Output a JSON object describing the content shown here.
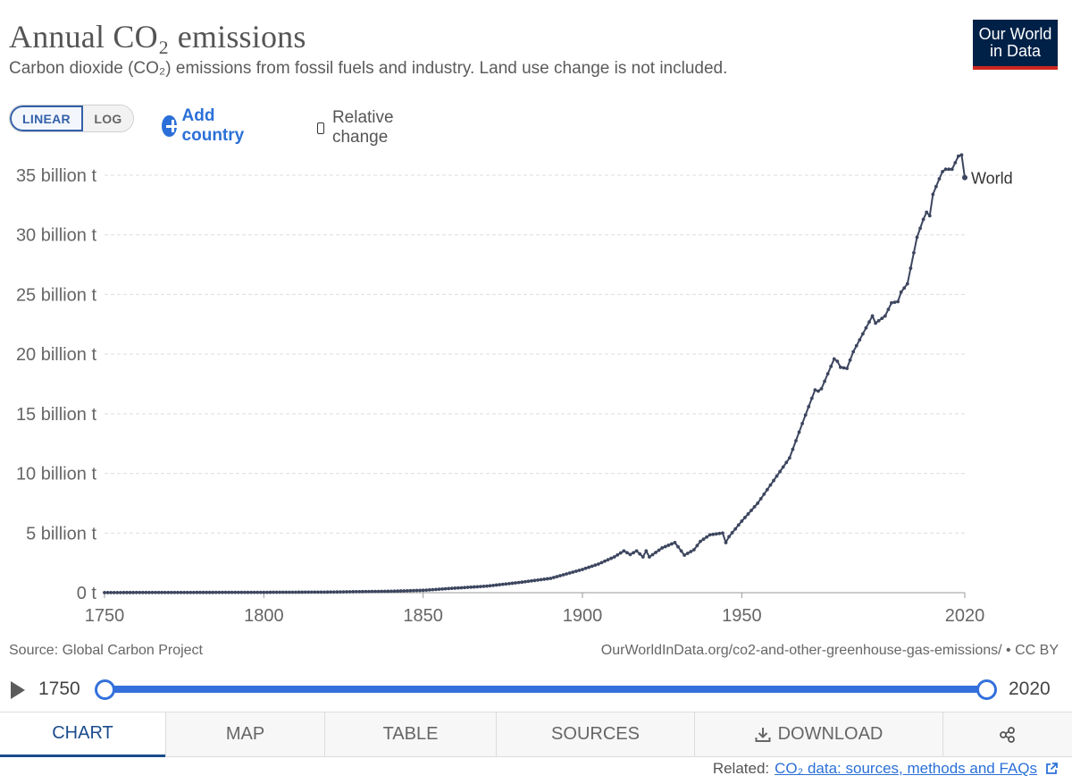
{
  "header": {
    "title": "Annual CO₂ emissions",
    "subtitle": "Carbon dioxide (CO₂) emissions from fossil fuels and industry. Land use change is not included.",
    "logo_line1": "Our World",
    "logo_line2": "in Data"
  },
  "controls": {
    "linear_label": "LINEAR",
    "log_label": "LOG",
    "add_country_label": "Add country",
    "relative_change_label": "Relative change"
  },
  "colors": {
    "series": "#3d465f",
    "accent": "#3370dc",
    "logo_bg": "#002147",
    "logo_bar": "#ce261e"
  },
  "chart_data": {
    "type": "line",
    "title": "Annual CO₂ emissions",
    "xlabel": "",
    "ylabel": "",
    "xlim": [
      1750,
      2020
    ],
    "ylim": [
      0,
      37000000000
    ],
    "x_ticks": [
      1750,
      1800,
      1850,
      1900,
      1950,
      2020
    ],
    "y_ticks": [
      0,
      5000000000,
      10000000000,
      15000000000,
      20000000000,
      25000000000,
      30000000000,
      35000000000
    ],
    "y_tick_labels": [
      "0 t",
      "5 billion t",
      "10 billion t",
      "15 billion t",
      "20 billion t",
      "25 billion t",
      "30 billion t",
      "35 billion t"
    ],
    "grid": "horizontal dashed",
    "series": [
      {
        "name": "World",
        "unit": "billion t",
        "keypoints": [
          [
            1750,
            0.01
          ],
          [
            1800,
            0.03
          ],
          [
            1820,
            0.05
          ],
          [
            1840,
            0.12
          ],
          [
            1850,
            0.2
          ],
          [
            1860,
            0.38
          ],
          [
            1870,
            0.55
          ],
          [
            1880,
            0.85
          ],
          [
            1890,
            1.2
          ],
          [
            1900,
            1.95
          ],
          [
            1905,
            2.4
          ],
          [
            1910,
            3.0
          ],
          [
            1913,
            3.5
          ],
          [
            1915,
            3.2
          ],
          [
            1917,
            3.5
          ],
          [
            1919,
            3.0
          ],
          [
            1920,
            3.5
          ],
          [
            1921,
            3.0
          ],
          [
            1925,
            3.75
          ],
          [
            1929,
            4.2
          ],
          [
            1930,
            3.85
          ],
          [
            1932,
            3.15
          ],
          [
            1935,
            3.6
          ],
          [
            1937,
            4.3
          ],
          [
            1940,
            4.85
          ],
          [
            1944,
            5.0
          ],
          [
            1945,
            4.2
          ],
          [
            1946,
            4.7
          ],
          [
            1950,
            6.0
          ],
          [
            1955,
            7.5
          ],
          [
            1960,
            9.4
          ],
          [
            1965,
            11.3
          ],
          [
            1970,
            14.9
          ],
          [
            1973,
            17.0
          ],
          [
            1974,
            16.9
          ],
          [
            1975,
            17.1
          ],
          [
            1979,
            19.6
          ],
          [
            1980,
            19.4
          ],
          [
            1981,
            18.9
          ],
          [
            1983,
            18.8
          ],
          [
            1985,
            20.2
          ],
          [
            1990,
            22.7
          ],
          [
            1991,
            23.2
          ],
          [
            1992,
            22.6
          ],
          [
            1995,
            23.2
          ],
          [
            1997,
            24.3
          ],
          [
            1999,
            24.4
          ],
          [
            2000,
            25.2
          ],
          [
            2002,
            25.9
          ],
          [
            2005,
            29.8
          ],
          [
            2007,
            31.3
          ],
          [
            2008,
            31.9
          ],
          [
            2009,
            31.6
          ],
          [
            2010,
            33.4
          ],
          [
            2012,
            34.7
          ],
          [
            2013,
            35.3
          ],
          [
            2014,
            35.5
          ],
          [
            2016,
            35.5
          ],
          [
            2018,
            36.6
          ],
          [
            2019,
            36.7
          ],
          [
            2020,
            34.8
          ]
        ]
      }
    ],
    "series_label": "World"
  },
  "footer": {
    "source": "Source: Global Carbon Project",
    "url": "OurWorldInData.org/co2-and-other-greenhouse-gas-emissions/ • CC BY"
  },
  "timeline": {
    "start_year": "1750",
    "end_year": "2020",
    "range_start": 1750,
    "range_end": 2020
  },
  "tabs": {
    "chart": "CHART",
    "map": "MAP",
    "table": "TABLE",
    "sources": "SOURCES",
    "download": "DOWNLOAD",
    "share_icon": "share-icon",
    "download_icon": "download-icon"
  },
  "related": {
    "label": "Related:",
    "link": "CO₂ data: sources, methods and FAQs",
    "icon": "external-link-icon"
  }
}
